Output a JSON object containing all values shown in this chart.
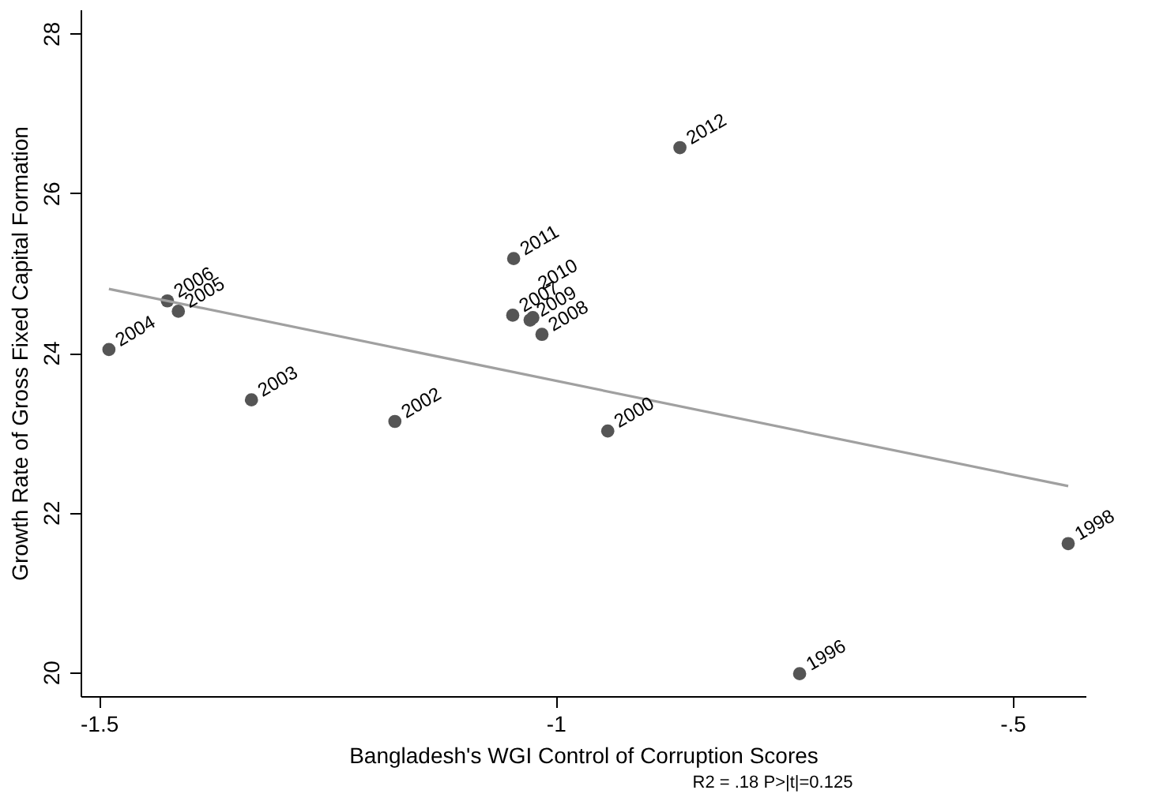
{
  "chart_data": {
    "type": "scatter",
    "xlabel": "Bangladesh's WGI Control of Corruption Scores",
    "ylabel": "Growth Rate of Gross Fixed Capital Formation",
    "xlim": [
      -1.52,
      -0.42
    ],
    "ylim": [
      19.7,
      28.3
    ],
    "xticks": [
      {
        "value": -1.5,
        "label": "-1.5"
      },
      {
        "value": -1,
        "label": "-1"
      },
      {
        "value": -0.5,
        "label": "-.5"
      }
    ],
    "yticks": [
      20,
      22,
      24,
      26,
      28
    ],
    "grid": false,
    "series": [
      {
        "marker": "circle",
        "color": "#555555",
        "x": [
          -0.733,
          -0.439,
          -0.943,
          -1.176,
          -1.333,
          -1.489,
          -1.413,
          -1.425,
          -1.047,
          -1.015,
          -1.028,
          -1.025,
          -1.046,
          -0.864
        ],
        "values": [
          19.98,
          21.61,
          23.02,
          23.14,
          23.41,
          24.04,
          24.52,
          24.65,
          24.47,
          24.23,
          24.41,
          24.44,
          25.18,
          26.57
        ]
      },
      {
        "type": "line",
        "color": "#a0a0a0",
        "x": [
          -1.489,
          -0.439
        ],
        "values": [
          24.8,
          22.33
        ]
      }
    ],
    "annotations": [
      {
        "text": "1996",
        "x": -0.733,
        "y": 19.98
      },
      {
        "text": "1998",
        "x": -0.439,
        "y": 21.61
      },
      {
        "text": "2000",
        "x": -0.943,
        "y": 23.02
      },
      {
        "text": "2002",
        "x": -1.176,
        "y": 23.14
      },
      {
        "text": "2003",
        "x": -1.333,
        "y": 23.41
      },
      {
        "text": "2004",
        "x": -1.489,
        "y": 24.04
      },
      {
        "text": "2005",
        "x": -1.413,
        "y": 24.52
      },
      {
        "text": "2006",
        "x": -1.425,
        "y": 24.65
      },
      {
        "text": "2007",
        "x": -1.047,
        "y": 24.47
      },
      {
        "text": "2008",
        "x": -1.015,
        "y": 24.23
      },
      {
        "text": "2009",
        "x": -1.028,
        "y": 24.41
      },
      {
        "text": "2010",
        "x": -1.025,
        "y": 24.44
      },
      {
        "text": "2011",
        "x": -1.046,
        "y": 25.18
      },
      {
        "text": "2012",
        "x": -0.864,
        "y": 26.57
      },
      "R2 = .18 P>|t|=0.125"
    ]
  }
}
